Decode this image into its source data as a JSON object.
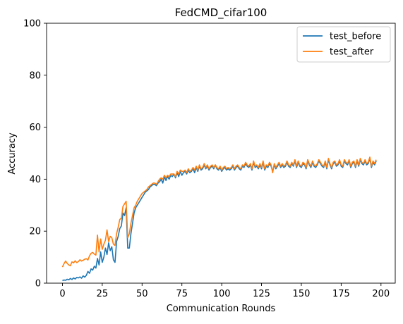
{
  "chart_data": {
    "type": "line",
    "title": "FedCMD_cifar100",
    "xlabel": "Communication Rounds",
    "ylabel": "Accuracy",
    "xlim": [
      -9.95,
      208.95
    ],
    "ylim": [
      0,
      100
    ],
    "xticks": [
      0,
      25,
      50,
      75,
      100,
      125,
      150,
      175,
      200
    ],
    "yticks": [
      0,
      20,
      40,
      60,
      80,
      100
    ],
    "grid": false,
    "legend_position": "top-right",
    "series": [
      {
        "name": "test_before",
        "color": "#1f77b4",
        "values": [
          1.0,
          1.2,
          1.1,
          1.5,
          1.3,
          1.8,
          1.4,
          2.0,
          1.6,
          2.2,
          2.0,
          2.4,
          1.9,
          2.8,
          2.3,
          3.0,
          4.5,
          3.8,
          5.5,
          5.0,
          6.5,
          5.8,
          9.5,
          7.0,
          12.0,
          8.0,
          10.0,
          13.5,
          11.0,
          15.5,
          12.5,
          14.0,
          9.0,
          8.0,
          16.0,
          18.0,
          21.0,
          22.0,
          27.0,
          26.0,
          29.0,
          13.5,
          13.5,
          19.0,
          23.0,
          27.0,
          29.0,
          30.0,
          31.0,
          32.0,
          33.0,
          34.0,
          35.0,
          35.5,
          36.0,
          37.0,
          37.5,
          38.0,
          38.0,
          37.5,
          38.5,
          39.0,
          40.0,
          38.5,
          41.0,
          39.5,
          41.0,
          40.0,
          41.5,
          41.0,
          42.0,
          40.5,
          42.5,
          41.0,
          43.0,
          41.5,
          42.5,
          43.0,
          42.0,
          43.5,
          42.5,
          43.0,
          44.0,
          42.5,
          44.5,
          43.0,
          45.0,
          43.5,
          44.0,
          45.5,
          44.0,
          45.0,
          43.5,
          44.5,
          45.0,
          44.0,
          45.5,
          44.0,
          43.5,
          44.5,
          43.0,
          44.0,
          44.5,
          43.5,
          44.0,
          43.5,
          44.0,
          45.0,
          43.5,
          44.5,
          45.0,
          44.0,
          43.5,
          45.0,
          44.5,
          46.0,
          45.0,
          44.5,
          45.5,
          43.5,
          46.5,
          44.5,
          45.0,
          44.0,
          45.5,
          44.0,
          46.5,
          43.5,
          45.0,
          44.5,
          46.0,
          45.0,
          43.0,
          45.5,
          44.0,
          45.0,
          46.0,
          44.5,
          45.5,
          44.5,
          45.0,
          46.5,
          45.0,
          44.5,
          46.0,
          45.0,
          47.0,
          44.5,
          46.5,
          45.0,
          44.5,
          46.0,
          45.5,
          44.0,
          47.0,
          45.5,
          44.5,
          46.5,
          45.0,
          44.5,
          45.5,
          47.0,
          46.0,
          45.0,
          44.5,
          46.5,
          44.0,
          47.5,
          45.5,
          44.0,
          46.0,
          46.5,
          45.0,
          45.5,
          47.0,
          45.0,
          44.5,
          47.0,
          46.0,
          45.5,
          47.0,
          44.5,
          46.0,
          46.5,
          44.5,
          47.0,
          45.0,
          47.5,
          46.0,
          45.5,
          47.0,
          45.5,
          46.0,
          48.0,
          44.5,
          46.5,
          45.5,
          47.0
        ]
      },
      {
        "name": "test_after",
        "color": "#ff7f0e",
        "values": [
          6.2,
          7.5,
          8.5,
          7.6,
          7.0,
          6.7,
          8.2,
          7.8,
          8.6,
          7.9,
          8.3,
          9.0,
          8.5,
          8.8,
          9.2,
          9.4,
          8.9,
          10.5,
          11.5,
          11.8,
          11.2,
          10.8,
          18.5,
          12.0,
          17.0,
          13.0,
          15.0,
          16.5,
          20.5,
          16.0,
          18.0,
          17.5,
          15.0,
          14.5,
          19.0,
          21.5,
          24.5,
          25.0,
          29.5,
          30.5,
          31.5,
          17.5,
          19.0,
          23.0,
          26.0,
          29.0,
          30.0,
          31.5,
          32.5,
          33.5,
          34.5,
          35.0,
          35.5,
          36.0,
          37.0,
          37.5,
          38.0,
          38.5,
          38.5,
          38.0,
          39.0,
          40.0,
          40.5,
          40.0,
          41.5,
          40.5,
          41.5,
          41.0,
          42.0,
          42.0,
          42.0,
          41.0,
          43.0,
          42.0,
          43.5,
          43.0,
          43.0,
          43.5,
          42.5,
          44.0,
          43.0,
          43.5,
          44.5,
          43.5,
          45.0,
          43.5,
          45.5,
          44.0,
          44.5,
          46.0,
          44.5,
          45.5,
          44.0,
          45.0,
          45.5,
          44.5,
          45.5,
          44.5,
          44.0,
          45.0,
          43.5,
          44.5,
          45.0,
          44.0,
          44.5,
          44.0,
          44.5,
          45.5,
          44.0,
          45.0,
          45.5,
          44.5,
          44.0,
          45.5,
          45.0,
          46.5,
          45.5,
          45.0,
          46.0,
          44.0,
          47.0,
          45.0,
          45.5,
          44.5,
          46.0,
          44.5,
          47.0,
          44.0,
          45.5,
          45.0,
          46.5,
          45.5,
          42.5,
          46.0,
          44.5,
          45.5,
          46.5,
          45.0,
          46.0,
          45.0,
          45.5,
          47.0,
          45.5,
          45.0,
          46.5,
          45.5,
          47.5,
          45.0,
          47.0,
          45.5,
          45.0,
          46.5,
          46.0,
          44.5,
          47.5,
          46.0,
          45.0,
          47.0,
          45.5,
          45.0,
          46.0,
          47.5,
          46.5,
          45.5,
          45.0,
          47.0,
          44.5,
          48.0,
          46.0,
          44.5,
          46.5,
          47.0,
          45.5,
          46.0,
          47.5,
          45.5,
          45.0,
          47.5,
          46.5,
          46.0,
          47.5,
          45.0,
          46.5,
          47.0,
          45.0,
          47.5,
          45.5,
          48.0,
          46.5,
          46.0,
          47.5,
          46.0,
          46.5,
          48.5,
          45.0,
          47.0,
          46.0,
          47.5
        ]
      }
    ]
  }
}
